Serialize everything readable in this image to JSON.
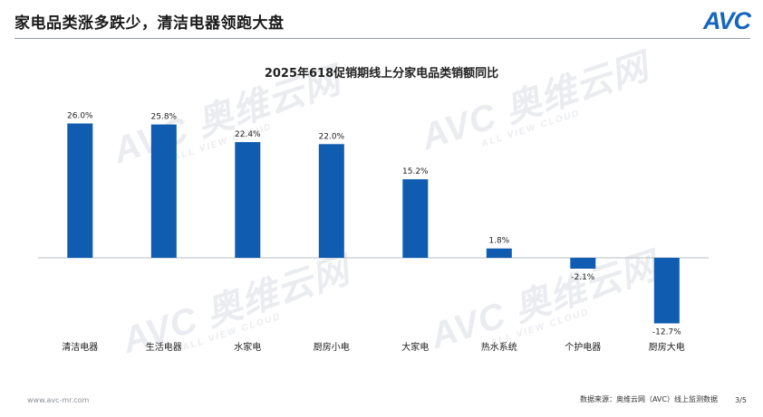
{
  "slide": {
    "title": "家电品类涨多跌少，清洁电器领跑大盘",
    "logo": "AVC",
    "website": "www.avc-mr.com",
    "source": "数据来源：奥维云网（AVC）线上监测数据",
    "page": "3/5"
  },
  "watermark": {
    "main": "AVC 奥维云网",
    "sub": "ALL VIEW CLOUD"
  },
  "colors": {
    "bar": "#0f5cb0",
    "axis": "#b9bec4",
    "logo_accent": "#f5a623"
  },
  "chart_data": {
    "type": "bar",
    "title": "2025年618促销期线上分家电品类销额同比",
    "categories": [
      "清洁电器",
      "生活电器",
      "水家电",
      "厨房小电",
      "大家电",
      "热水系统",
      "个护电器",
      "厨房大电"
    ],
    "values": [
      26.0,
      25.8,
      22.4,
      22.0,
      15.2,
      1.8,
      -2.1,
      -12.7
    ],
    "data_labels": [
      "26.0%",
      "25.8%",
      "22.4%",
      "22.0%",
      "15.2%",
      "1.8%",
      "-2.1%",
      "-12.7%"
    ],
    "unit": "%",
    "ylim": [
      -15,
      30
    ],
    "xlabel": "",
    "ylabel": "",
    "grid": false,
    "legend": "none"
  }
}
